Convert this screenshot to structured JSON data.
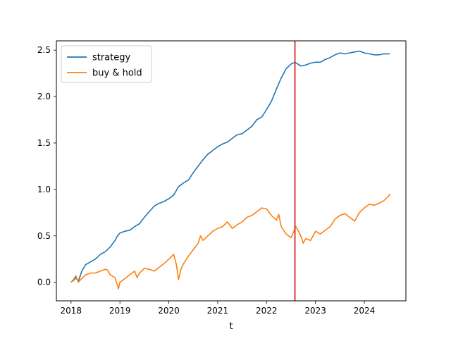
{
  "chart_data": {
    "type": "line",
    "title": "",
    "xlabel": "t",
    "ylabel": "",
    "xlim": [
      2017.7,
      2024.85
    ],
    "ylim": [
      -0.2,
      2.6
    ],
    "x_ticks": [
      2018,
      2019,
      2020,
      2021,
      2022,
      2023,
      2024
    ],
    "x_tick_labels": [
      "2018",
      "2019",
      "2020",
      "2021",
      "2022",
      "2023",
      "2024"
    ],
    "y_ticks": [
      0.0,
      0.5,
      1.0,
      1.5,
      2.0,
      2.5
    ],
    "y_tick_labels": [
      "0.0",
      "0.5",
      "1.0",
      "1.5",
      "2.0",
      "2.5"
    ],
    "grid": false,
    "legend_position": "top-left",
    "vertical_line": {
      "x": 2022.58,
      "color": "#d62728"
    },
    "series": [
      {
        "name": "strategy",
        "color": "#1f77b4",
        "points": [
          [
            2018.0,
            0.0
          ],
          [
            2018.05,
            0.02
          ],
          [
            2018.1,
            0.05
          ],
          [
            2018.15,
            0.01
          ],
          [
            2018.22,
            0.12
          ],
          [
            2018.3,
            0.19
          ],
          [
            2018.4,
            0.22
          ],
          [
            2018.5,
            0.25
          ],
          [
            2018.6,
            0.3
          ],
          [
            2018.7,
            0.33
          ],
          [
            2018.8,
            0.38
          ],
          [
            2018.9,
            0.45
          ],
          [
            2018.95,
            0.5
          ],
          [
            2019.0,
            0.53
          ],
          [
            2019.1,
            0.55
          ],
          [
            2019.2,
            0.56
          ],
          [
            2019.3,
            0.6
          ],
          [
            2019.4,
            0.63
          ],
          [
            2019.5,
            0.7
          ],
          [
            2019.6,
            0.76
          ],
          [
            2019.7,
            0.82
          ],
          [
            2019.8,
            0.85
          ],
          [
            2019.9,
            0.87
          ],
          [
            2020.0,
            0.9
          ],
          [
            2020.1,
            0.94
          ],
          [
            2020.2,
            1.03
          ],
          [
            2020.25,
            1.05
          ],
          [
            2020.3,
            1.07
          ],
          [
            2020.4,
            1.1
          ],
          [
            2020.5,
            1.18
          ],
          [
            2020.6,
            1.25
          ],
          [
            2020.7,
            1.32
          ],
          [
            2020.8,
            1.38
          ],
          [
            2020.9,
            1.42
          ],
          [
            2021.0,
            1.46
          ],
          [
            2021.1,
            1.49
          ],
          [
            2021.2,
            1.51
          ],
          [
            2021.3,
            1.55
          ],
          [
            2021.4,
            1.59
          ],
          [
            2021.5,
            1.6
          ],
          [
            2021.6,
            1.64
          ],
          [
            2021.7,
            1.68
          ],
          [
            2021.8,
            1.75
          ],
          [
            2021.9,
            1.78
          ],
          [
            2022.0,
            1.86
          ],
          [
            2022.1,
            1.95
          ],
          [
            2022.2,
            2.08
          ],
          [
            2022.3,
            2.2
          ],
          [
            2022.4,
            2.3
          ],
          [
            2022.5,
            2.35
          ],
          [
            2022.58,
            2.37
          ],
          [
            2022.7,
            2.33
          ],
          [
            2022.8,
            2.34
          ],
          [
            2022.9,
            2.36
          ],
          [
            2023.0,
            2.37
          ],
          [
            2023.1,
            2.37
          ],
          [
            2023.2,
            2.4
          ],
          [
            2023.3,
            2.42
          ],
          [
            2023.4,
            2.45
          ],
          [
            2023.5,
            2.47
          ],
          [
            2023.6,
            2.46
          ],
          [
            2023.7,
            2.47
          ],
          [
            2023.8,
            2.48
          ],
          [
            2023.9,
            2.49
          ],
          [
            2024.0,
            2.47
          ],
          [
            2024.1,
            2.46
          ],
          [
            2024.2,
            2.45
          ],
          [
            2024.3,
            2.45
          ],
          [
            2024.4,
            2.46
          ],
          [
            2024.52,
            2.46
          ]
        ]
      },
      {
        "name": "buy & hold",
        "color": "#ff7f0e",
        "points": [
          [
            2018.0,
            0.0
          ],
          [
            2018.05,
            0.03
          ],
          [
            2018.1,
            0.07
          ],
          [
            2018.15,
            0.0
          ],
          [
            2018.2,
            0.03
          ],
          [
            2018.3,
            0.08
          ],
          [
            2018.4,
            0.1
          ],
          [
            2018.5,
            0.1
          ],
          [
            2018.6,
            0.12
          ],
          [
            2018.7,
            0.14
          ],
          [
            2018.75,
            0.13
          ],
          [
            2018.8,
            0.08
          ],
          [
            2018.9,
            0.05
          ],
          [
            2018.97,
            -0.07
          ],
          [
            2019.0,
            0.0
          ],
          [
            2019.1,
            0.04
          ],
          [
            2019.2,
            0.08
          ],
          [
            2019.3,
            0.12
          ],
          [
            2019.35,
            0.05
          ],
          [
            2019.4,
            0.1
          ],
          [
            2019.5,
            0.15
          ],
          [
            2019.6,
            0.14
          ],
          [
            2019.7,
            0.12
          ],
          [
            2019.8,
            0.16
          ],
          [
            2019.9,
            0.2
          ],
          [
            2020.0,
            0.25
          ],
          [
            2020.1,
            0.3
          ],
          [
            2020.15,
            0.2
          ],
          [
            2020.2,
            0.03
          ],
          [
            2020.25,
            0.14
          ],
          [
            2020.3,
            0.2
          ],
          [
            2020.4,
            0.28
          ],
          [
            2020.5,
            0.35
          ],
          [
            2020.6,
            0.42
          ],
          [
            2020.65,
            0.5
          ],
          [
            2020.7,
            0.45
          ],
          [
            2020.8,
            0.5
          ],
          [
            2020.9,
            0.55
          ],
          [
            2021.0,
            0.58
          ],
          [
            2021.1,
            0.6
          ],
          [
            2021.2,
            0.65
          ],
          [
            2021.3,
            0.58
          ],
          [
            2021.4,
            0.62
          ],
          [
            2021.5,
            0.65
          ],
          [
            2021.6,
            0.7
          ],
          [
            2021.7,
            0.72
          ],
          [
            2021.8,
            0.76
          ],
          [
            2021.9,
            0.8
          ],
          [
            2022.0,
            0.79
          ],
          [
            2022.1,
            0.72
          ],
          [
            2022.2,
            0.67
          ],
          [
            2022.25,
            0.73
          ],
          [
            2022.3,
            0.6
          ],
          [
            2022.4,
            0.52
          ],
          [
            2022.5,
            0.48
          ],
          [
            2022.6,
            0.6
          ],
          [
            2022.7,
            0.5
          ],
          [
            2022.75,
            0.42
          ],
          [
            2022.8,
            0.47
          ],
          [
            2022.9,
            0.45
          ],
          [
            2023.0,
            0.55
          ],
          [
            2023.1,
            0.52
          ],
          [
            2023.2,
            0.56
          ],
          [
            2023.3,
            0.6
          ],
          [
            2023.4,
            0.68
          ],
          [
            2023.5,
            0.72
          ],
          [
            2023.6,
            0.74
          ],
          [
            2023.7,
            0.7
          ],
          [
            2023.8,
            0.66
          ],
          [
            2023.9,
            0.75
          ],
          [
            2024.0,
            0.8
          ],
          [
            2024.1,
            0.84
          ],
          [
            2024.2,
            0.83
          ],
          [
            2024.3,
            0.85
          ],
          [
            2024.4,
            0.88
          ],
          [
            2024.5,
            0.93
          ],
          [
            2024.52,
            0.95
          ]
        ]
      }
    ]
  }
}
